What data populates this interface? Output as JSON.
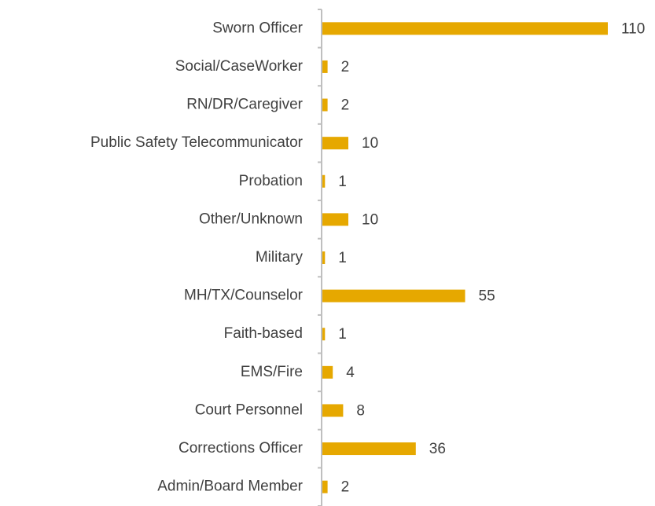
{
  "chart_data": {
    "type": "barh",
    "categories": [
      "Sworn Officer",
      "Social/CaseWorker",
      "RN/DR/Caregiver",
      "Public Safety Telecommunicator",
      "Probation",
      "Other/Unknown",
      "Military",
      "MH/TX/Counselor",
      "Faith-based",
      "EMS/Fire",
      "Court Personnel",
      "Corrections Officer",
      "Admin/Board Member"
    ],
    "values": [
      110,
      2,
      2,
      10,
      1,
      10,
      1,
      55,
      1,
      4,
      8,
      36,
      2
    ],
    "color": "#e6a800"
  }
}
